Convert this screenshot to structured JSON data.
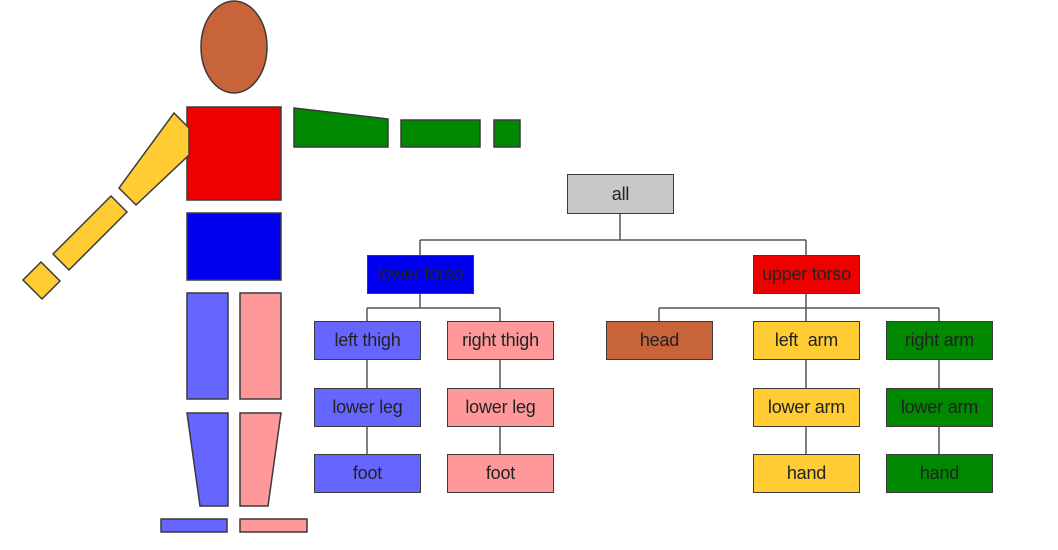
{
  "colors": {
    "root": "#c8c8c8",
    "lower_torso": "#0000ee",
    "upper_torso": "#ee0000",
    "left_leg": "#6666ff",
    "right_leg": "#ff9999",
    "head": "#c8643a",
    "left_arm": "#ffcc33",
    "right_arm": "#008800",
    "outline": "#3a3a3a",
    "connector": "#555555"
  },
  "hierarchy": {
    "root": "all",
    "lower_torso": {
      "label": "lower torso",
      "left_leg": [
        "left thigh",
        "lower leg",
        "foot"
      ],
      "right_leg": [
        "right thigh",
        "lower leg",
        "foot"
      ]
    },
    "upper_torso": {
      "label": "upper torso",
      "head": "head",
      "left_arm": [
        "left  arm",
        "lower arm",
        "hand"
      ],
      "right_arm": [
        "right arm",
        "lower arm",
        "hand"
      ]
    }
  }
}
